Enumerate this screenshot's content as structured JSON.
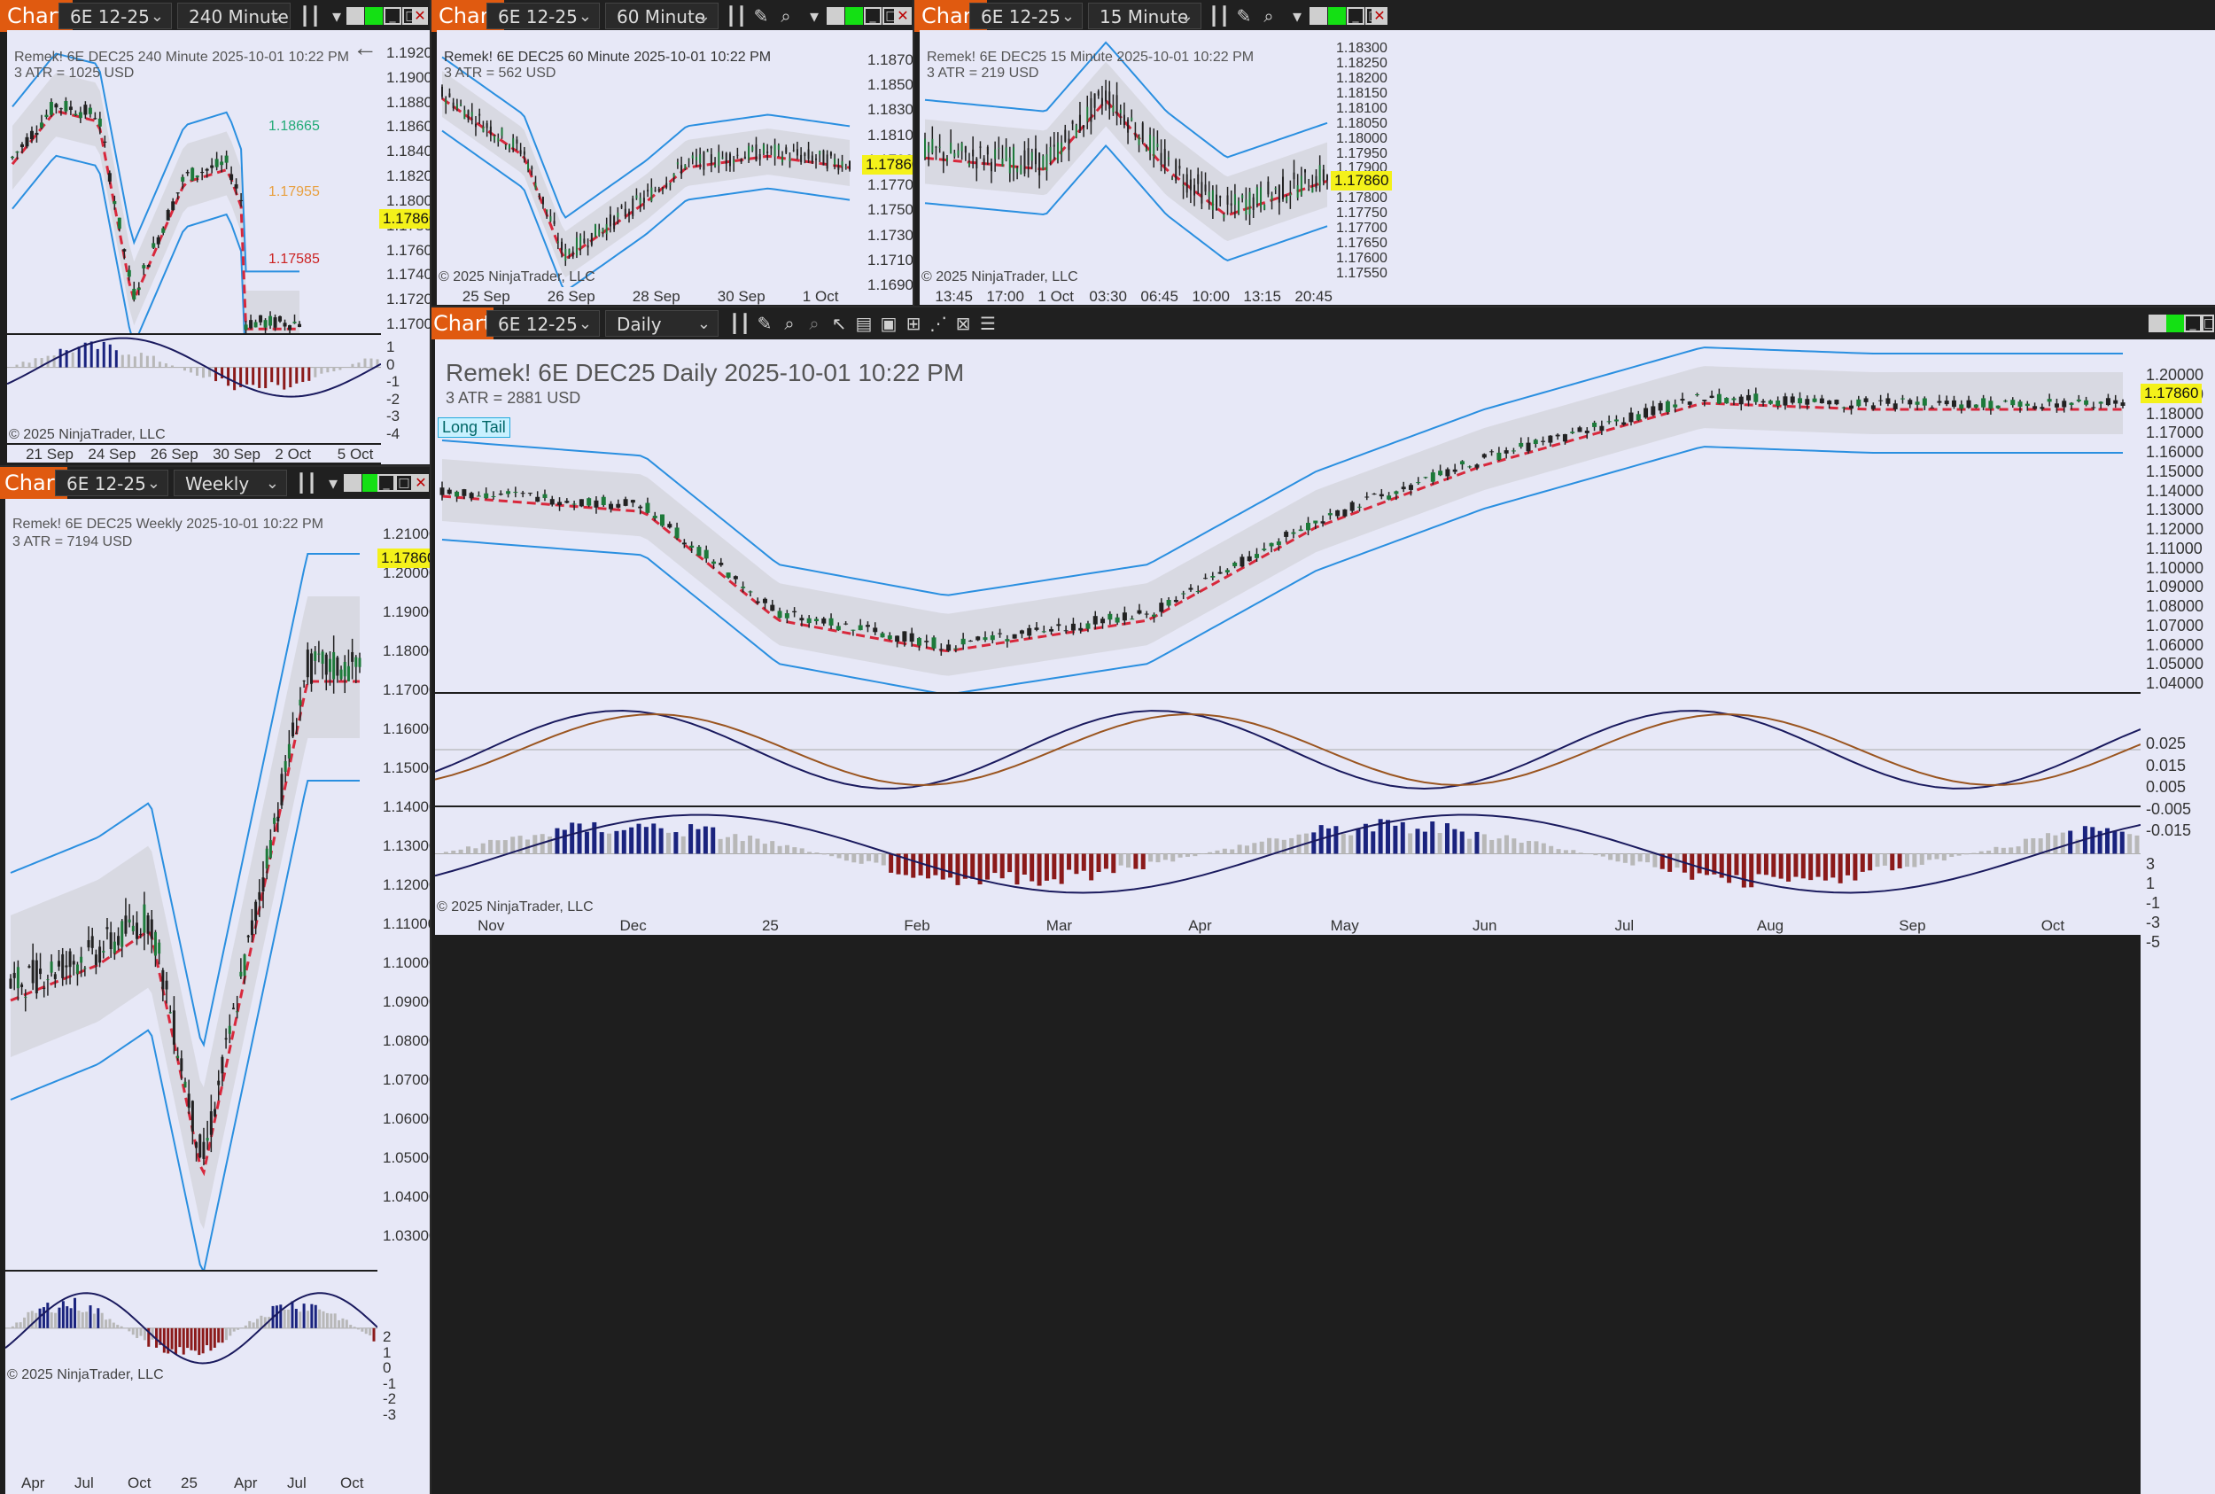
{
  "common": {
    "tab_label": "Chart",
    "copyright": "© 2025 NinjaTrader, LLC",
    "last_price": "1.17860",
    "instrument": "6E 12-25"
  },
  "w1": {
    "interval": "240 Minute",
    "title": "Remek!  6E DEC25  240 Minute  2025-10-01 10:22 PM",
    "atr": "3 ATR = 1025 USD",
    "price_ticks": [
      "1.19200",
      "1.19000",
      "1.18800",
      "1.18600",
      "1.18400",
      "1.18200",
      "1.18000",
      "1.17800",
      "1.17600",
      "1.17400",
      "1.17200",
      "1.17000"
    ],
    "osc_ticks": [
      "1",
      "0",
      "-1",
      "-2",
      "-3",
      "-4"
    ],
    "date_ticks": [
      "21 Sep",
      "24 Sep",
      "26 Sep",
      "30 Sep",
      "2 Oct",
      "5 Oct"
    ],
    "ann_high": "1.18665",
    "ann_mid": "1.17955",
    "ann_low": "1.17585"
  },
  "w2": {
    "interval": "60 Minute",
    "title": "Remek!  6E DEC25  60 Minute  2025-10-01 10:22 PM",
    "atr": "3 ATR = 562 USD",
    "price_ticks": [
      "1.18700",
      "1.18500",
      "1.18300",
      "1.18100",
      "1.17900",
      "1.17700",
      "1.17500",
      "1.17300",
      "1.17100",
      "1.16900"
    ],
    "date_ticks": [
      "25 Sep",
      "26 Sep",
      "28 Sep",
      "30 Sep",
      "1 Oct"
    ]
  },
  "w3": {
    "interval": "15 Minute",
    "title": "Remek!  6E DEC25  15 Minute  2025-10-01 10:22 PM",
    "atr": "3 ATR = 219 USD",
    "price_ticks": [
      "1.18300",
      "1.18250",
      "1.18200",
      "1.18150",
      "1.18100",
      "1.18050",
      "1.18000",
      "1.17950",
      "1.17900",
      "1.17850",
      "1.17800",
      "1.17750",
      "1.17700",
      "1.17650",
      "1.17600",
      "1.17550"
    ],
    "date_ticks": [
      "13:45",
      "17:00",
      "1 Oct",
      "03:30",
      "06:45",
      "10:00",
      "13:15",
      "20:45"
    ]
  },
  "w4": {
    "interval": "Weekly",
    "title": "Remek!  6E DEC25  Weekly  2025-10-01 10:22 PM",
    "atr": "3 ATR = 7194 USD",
    "price_ticks": [
      "1.21000",
      "1.20000",
      "1.19000",
      "1.18000",
      "1.17000",
      "1.16000",
      "1.15000",
      "1.14000",
      "1.13000",
      "1.12000",
      "1.11000",
      "1.10000",
      "1.09000",
      "1.08000",
      "1.07000",
      "1.06000",
      "1.05000",
      "1.04000",
      "1.03000"
    ],
    "osc_ticks": [
      "2",
      "1",
      "0",
      "-1",
      "-2",
      "-3"
    ],
    "date_ticks": [
      "Apr",
      "Jul",
      "Oct",
      "25",
      "Apr",
      "Jul",
      "Oct"
    ]
  },
  "w5": {
    "interval": "Daily",
    "title": "Remek!  6E DEC25  Daily  2025-10-01 10:22 PM",
    "atr": "3 ATR = 2881 USD",
    "long_tail": "Long Tail",
    "price_ticks": [
      "1.20000",
      "1.19000",
      "1.18000",
      "1.17000",
      "1.16000",
      "1.15000",
      "1.14000",
      "1.13000",
      "1.12000",
      "1.11000",
      "1.10000",
      "1.09000",
      "1.08000",
      "1.07000",
      "1.06000",
      "1.05000",
      "1.04000"
    ],
    "osc1_ticks": [
      "0.025",
      "0.015",
      "0.005",
      "-0.005",
      "-0.015"
    ],
    "osc2_ticks": [
      "3",
      "1",
      "-1",
      "-3",
      "-5"
    ],
    "date_ticks": [
      "Nov",
      "Dec",
      "25",
      "Feb",
      "Mar",
      "Apr",
      "May",
      "Jun",
      "Jul",
      "Aug",
      "Sep",
      "Oct"
    ]
  }
}
